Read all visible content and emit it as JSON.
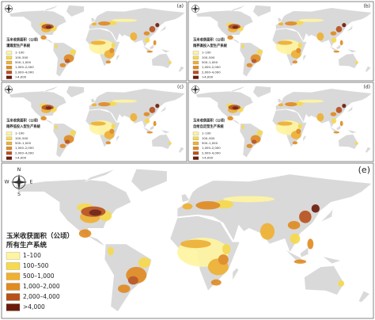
{
  "panels": [
    {
      "label": "(a)",
      "legend_title": "玉米收获面积（公顷）",
      "system": "灌溉型生产系统"
    },
    {
      "label": "(b)",
      "legend_title": "玉米收获面积（公顷）",
      "system": "雨养高投入型生产系统"
    },
    {
      "label": "(c)",
      "legend_title": "玉米收获面积（公顷）",
      "system": "雨养低投入型生产系统"
    },
    {
      "label": "(d)",
      "legend_title": "玉米收获面积（公顷）",
      "system": "自给自足型生产系统"
    },
    {
      "label": "(e)",
      "legend_title": "玉米收获面积（公顷）",
      "system": "所有生产系统"
    }
  ],
  "legend_classes": [
    "1–100",
    "100–500",
    "500–1,000",
    "1,000–2,000",
    "2,000–4,000",
    ">4,000"
  ],
  "compass": [
    "N",
    "E",
    "S",
    "W"
  ]
}
